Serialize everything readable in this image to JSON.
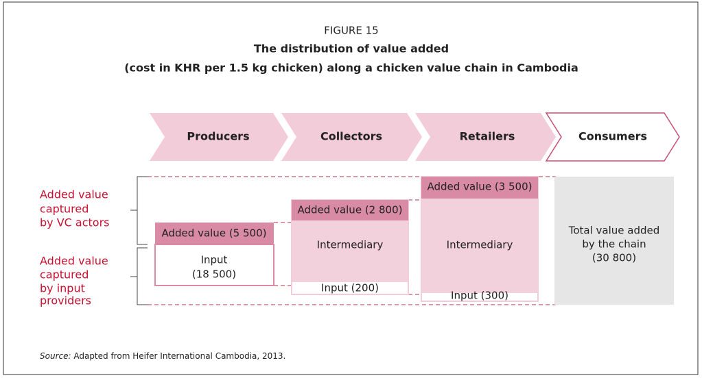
{
  "figure_label": "FIGURE 15",
  "title": [
    "The distribution of value added",
    "(cost in KHR per 1.5 kg chicken) along a chicken value chain in Cambodia"
  ],
  "stages": [
    "Producers",
    "Collectors",
    "Retailers",
    "Consumers"
  ],
  "side_labels": [
    [
      "Added value",
      "captured",
      "by VC actors"
    ],
    [
      "Added value",
      "captured",
      "by input",
      "providers"
    ]
  ],
  "boxes": [
    {
      "added": "Added value (5 500)",
      "input": [
        "Input",
        "(18 500)"
      ]
    },
    {
      "added": "Added value (2 800)",
      "intermediary": "Intermediary",
      "input": [
        "Input (200)"
      ]
    },
    {
      "added": "Added value (3 500)",
      "intermediary": "Intermediary",
      "input": [
        "Input (300)"
      ]
    }
  ],
  "total": [
    "Total value added",
    "by the chain",
    "(30 800)"
  ],
  "source": {
    "label": "Source:",
    "text": " Adapted from Heifer International Cambodia, 2013."
  }
}
